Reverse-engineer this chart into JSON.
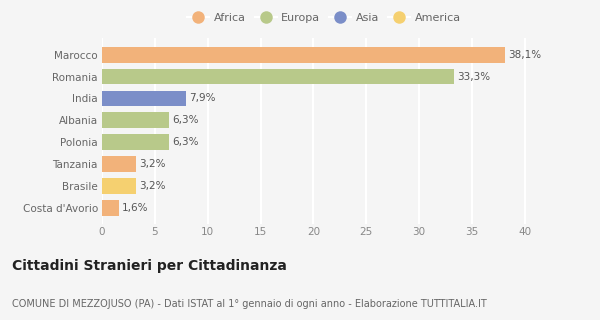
{
  "categories": [
    "Marocco",
    "Romania",
    "India",
    "Albania",
    "Polonia",
    "Tanzania",
    "Brasile",
    "Costa d'Avorio"
  ],
  "values": [
    38.1,
    33.3,
    7.9,
    6.3,
    6.3,
    3.2,
    3.2,
    1.6
  ],
  "labels": [
    "38,1%",
    "33,3%",
    "7,9%",
    "6,3%",
    "6,3%",
    "3,2%",
    "3,2%",
    "1,6%"
  ],
  "colors": [
    "#f2b27a",
    "#b8c98a",
    "#7b8ec8",
    "#b8c98a",
    "#b8c98a",
    "#f2b27a",
    "#f5d070",
    "#f2b27a"
  ],
  "legend": [
    {
      "label": "Africa",
      "color": "#f2b27a"
    },
    {
      "label": "Europa",
      "color": "#b8c98a"
    },
    {
      "label": "Asia",
      "color": "#7b8ec8"
    },
    {
      "label": "America",
      "color": "#f5d070"
    }
  ],
  "xlim": [
    0,
    42
  ],
  "xticks": [
    0,
    5,
    10,
    15,
    20,
    25,
    30,
    35,
    40
  ],
  "title": "Cittadini Stranieri per Cittadinanza",
  "subtitle": "COMUNE DI MEZZOJUSO (PA) - Dati ISTAT al 1° gennaio di ogni anno - Elaborazione TUTTITALIA.IT",
  "bg_color": "#f5f5f5",
  "grid_color": "#ffffff",
  "title_fontsize": 10,
  "subtitle_fontsize": 7,
  "label_fontsize": 7.5,
  "tick_fontsize": 7.5,
  "ytick_fontsize": 7.5
}
